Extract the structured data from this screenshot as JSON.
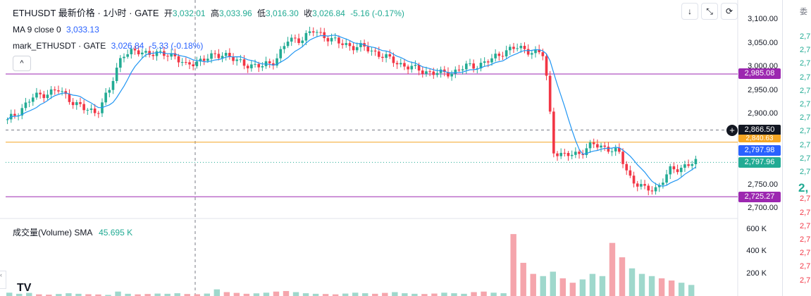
{
  "header": {
    "symbol": "ETHUSDT 最新价格 · 1小时 · GATE",
    "open_label": "开",
    "open": "3,032.01",
    "high_label": "高",
    "high": "3,033.96",
    "low_label": "低",
    "low": "3,016.30",
    "close_label": "收",
    "close": "3,026.84",
    "change": "-5.16 (-0.17%)"
  },
  "ma": {
    "label": "MA 9 close 0",
    "value": "3,033.13"
  },
  "mark": {
    "label": "mark_ETHUSDT · GATE",
    "value": "3,026.84",
    "change": "-5.33 (-0.18%)"
  },
  "toolbar": {
    "down_icon": "↓",
    "collapse_icon": "⤡",
    "reset_icon": "⟳"
  },
  "collapse_icon": "^",
  "volume": {
    "label": "成交量(Volume)",
    "sma_label": "SMA",
    "sma_value": "45.695 K"
  },
  "tags": {
    "level_top": "2,985.08",
    "crosshair": "2,866.50",
    "orange": "2,840.63",
    "mark_price": "2,797.98",
    "last_price": "2,797.96",
    "level_bottom": "2,725.27"
  },
  "colors": {
    "up": "#22ab94",
    "down": "#f23645",
    "ma": "#2196f3",
    "level": "#9c27b0",
    "orange": "#f5a623",
    "mark": "#2962ff"
  },
  "order_book": {
    "title": "委",
    "rows": [
      "2,7",
      "2,7",
      "2,7",
      "2,7",
      "2,7",
      "2,7",
      "2,7",
      "2,7",
      "2,7",
      "2,7",
      "2,7",
      "2,",
      "2,7",
      "2,7",
      "2,7",
      "2,7",
      "2,7",
      "2,7",
      "2,7"
    ]
  },
  "logo": "TV",
  "chart_data": {
    "type": "candlestick",
    "price_axis": {
      "ticks": [
        "3,100.00",
        "3,050.00",
        "3,000.00",
        "2,950.00",
        "2,900.00",
        "2,750.00",
        "2,700.00"
      ],
      "ylim": [
        2700,
        3120
      ]
    },
    "volume_axis": {
      "ticks": [
        "600 K",
        "400 K",
        "200 K"
      ],
      "ylim": [
        0,
        650000
      ]
    },
    "horizontal_lines": [
      {
        "price": 2985.08,
        "color": "#9c27b0"
      },
      {
        "price": 2866.5,
        "color": "#787b86",
        "style": "dashed"
      },
      {
        "price": 2840.63,
        "color": "#f5a623"
      },
      {
        "price": 2797.96,
        "color": "#22ab94",
        "style": "dotted"
      },
      {
        "price": 2725.27,
        "color": "#9c27b0"
      }
    ],
    "close_path": [
      [
        0,
        2885
      ],
      [
        5,
        2910
      ],
      [
        10,
        2935
      ],
      [
        15,
        2945
      ],
      [
        20,
        2950
      ],
      [
        25,
        2930
      ],
      [
        30,
        2910
      ],
      [
        35,
        2905
      ],
      [
        40,
        2950
      ],
      [
        45,
        3030
      ],
      [
        50,
        3030
      ],
      [
        55,
        3032
      ],
      [
        60,
        3025
      ],
      [
        65,
        3028
      ],
      [
        70,
        3000
      ],
      [
        75,
        3015
      ],
      [
        80,
        3020
      ],
      [
        85,
        3030
      ],
      [
        90,
        3010
      ],
      [
        95,
        3005
      ],
      [
        100,
        3000
      ],
      [
        105,
        3015
      ],
      [
        110,
        3055
      ],
      [
        115,
        3060
      ],
      [
        120,
        3075
      ],
      [
        125,
        3065
      ],
      [
        130,
        3050
      ],
      [
        135,
        3045
      ],
      [
        140,
        3040
      ],
      [
        145,
        3030
      ],
      [
        150,
        3015
      ],
      [
        155,
        3005
      ],
      [
        160,
        2995
      ],
      [
        165,
        2990
      ],
      [
        170,
        2985
      ],
      [
        175,
        2990
      ],
      [
        180,
        3000
      ],
      [
        185,
        3005
      ],
      [
        190,
        3015
      ],
      [
        195,
        3035
      ],
      [
        200,
        3040
      ],
      [
        205,
        3035
      ],
      [
        210,
        3025
      ],
      [
        212,
        2960
      ],
      [
        214,
        2825
      ],
      [
        218,
        2810
      ],
      [
        225,
        2820
      ],
      [
        230,
        2835
      ],
      [
        235,
        2830
      ],
      [
        240,
        2815
      ],
      [
        245,
        2760
      ],
      [
        250,
        2740
      ],
      [
        255,
        2745
      ],
      [
        260,
        2780
      ],
      [
        265,
        2790
      ],
      [
        270,
        2797
      ]
    ],
    "volumes": [
      30,
      20,
      28,
      15,
      12,
      18,
      25,
      20,
      16,
      14,
      10,
      40,
      20,
      15,
      18,
      22,
      20,
      25,
      18,
      16,
      22,
      60,
      35,
      28,
      20,
      24,
      30,
      40,
      45,
      35,
      25,
      20,
      18,
      15,
      22,
      30,
      25,
      20,
      28,
      35,
      25,
      20,
      18,
      22,
      30,
      25,
      20,
      35,
      40,
      30,
      25,
      560,
      300,
      200,
      180,
      220,
      160,
      120,
      150,
      200,
      180,
      480,
      350,
      250,
      200,
      180,
      160,
      140,
      120,
      100
    ]
  }
}
